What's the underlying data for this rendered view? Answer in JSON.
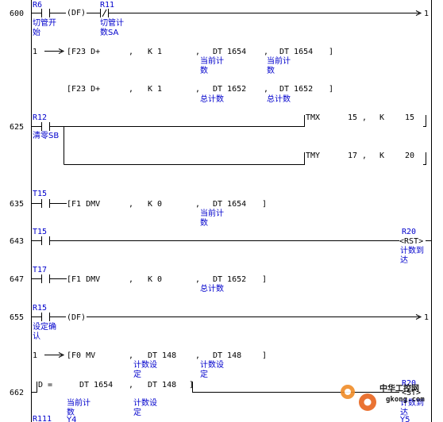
{
  "rungs": {
    "r600": {
      "step": "600",
      "contact1": {
        "addr": "R6",
        "comment": [
          "切管开",
          "始"
        ]
      },
      "df": "(DF)",
      "contact2": {
        "addr": "R11",
        "comment": [
          "切管计",
          "数SA"
        ]
      },
      "out_link": "1"
    },
    "f23_a": {
      "in_link": "1",
      "instr": "[F23 D+",
      "k": "K 1",
      "dt1": "DT 1654",
      "dt1_comment": [
        "当前计",
        "数"
      ],
      "dt2": "DT 1654",
      "dt2_comment": [
        "当前计",
        "数"
      ],
      "close": "]"
    },
    "f23_b": {
      "instr": "[F23 D+",
      "k": "K 1",
      "dt1": "DT 1652",
      "dt1_comment": [
        "总计数"
      ],
      "dt2": "DT 1652",
      "dt2_comment": [
        "总计数"
      ],
      "close": "]"
    },
    "r625": {
      "step": "625",
      "contact": {
        "addr": "R12",
        "comment": [
          "清零SB"
        ]
      },
      "tmx": {
        "name": "TMX",
        "no": "15",
        "comma": ",",
        "k": "K",
        "val": "15"
      },
      "tmy": {
        "name": "TMY",
        "no": "17",
        "comma": ",",
        "k": "K",
        "val": "20"
      }
    },
    "r635": {
      "step": "635",
      "contact": {
        "addr": "T15"
      },
      "instr": "[F1 DMV",
      "k": "K 0",
      "dt": "DT 1654",
      "dt_comment": [
        "当前计",
        "数"
      ],
      "close": "]"
    },
    "r643": {
      "step": "643",
      "contact": {
        "addr": "T15"
      },
      "coil": {
        "addr": "R20",
        "op": "<RST>",
        "comment": [
          "计数到",
          "达"
        ]
      }
    },
    "r647": {
      "step": "647",
      "contact": {
        "addr": "T17"
      },
      "instr": "[F1 DMV",
      "k": "K 0",
      "dt": "DT 1652",
      "dt_comment": [
        "总计数"
      ],
      "close": "]"
    },
    "r655": {
      "step": "655",
      "contact": {
        "addr": "R15",
        "comment": [
          "设定确",
          "认"
        ]
      },
      "df": "(DF)",
      "out_link": "1"
    },
    "f0": {
      "in_link": "1",
      "instr": "[F0 MV",
      "dt1": "DT 148",
      "dt1_comment": [
        "计数设",
        "定"
      ],
      "dt2": "DT 148",
      "dt2_comment": [
        "计数设",
        "定"
      ],
      "close": "]"
    },
    "r662": {
      "step": "662",
      "cmp": "D =",
      "dt1": "DT 1654",
      "dt1_comment": [
        "当前计",
        "数"
      ],
      "dt2": "DT 148",
      "dt2_comment": [
        "计数设",
        "定"
      ],
      "close": "]",
      "coil": {
        "addr": "R20",
        "op": "<ST>",
        "comment": [
          "计数到",
          "达"
        ]
      },
      "extra": [
        "Y4",
        "Y5"
      ],
      "next_addr": "R111"
    }
  },
  "watermark": {
    "site_cn": "中华工控网",
    "site_en": "gkong.com"
  },
  "colors": {
    "comment": "#0000cc",
    "line": "#000000",
    "watermark": "#e8641e"
  }
}
